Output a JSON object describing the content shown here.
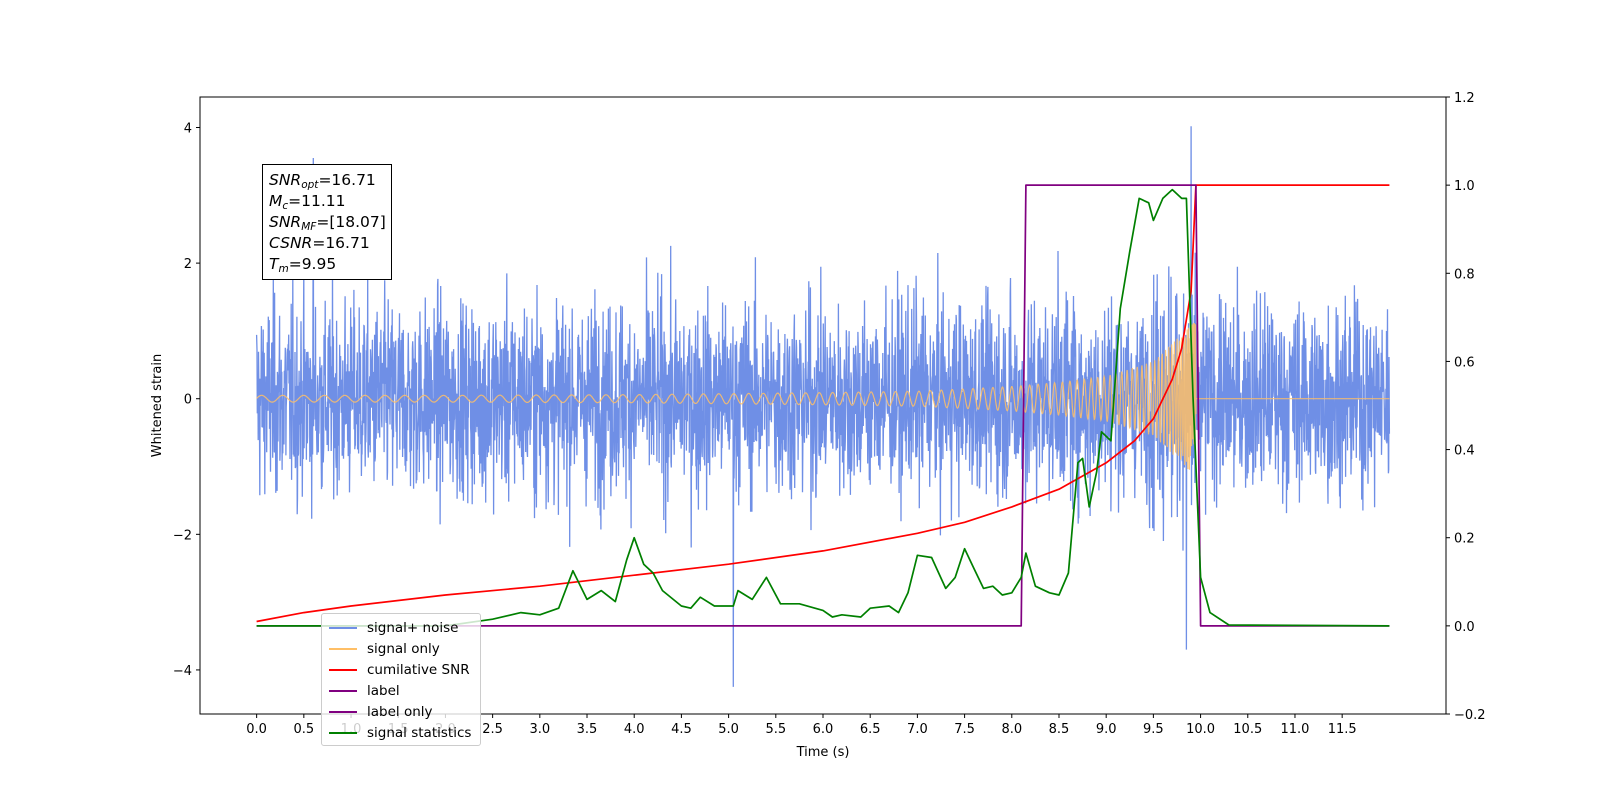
{
  "chart_data": {
    "type": "line",
    "xlabel": "Time (s)",
    "ylabel": "Whitened strain",
    "xlim": [
      -0.6,
      12.6
    ],
    "ylim": [
      -4.65,
      4.45
    ],
    "y2lim": [
      -0.2,
      1.2
    ],
    "xticks": [
      "0.0",
      "0.5",
      "1.0",
      "1.5",
      "2.0",
      "2.5",
      "3.0",
      "3.5",
      "4.0",
      "4.5",
      "5.0",
      "5.5",
      "6.0",
      "6.5",
      "7.0",
      "7.5",
      "8.0",
      "8.5",
      "9.0",
      "9.5",
      "10.0",
      "10.5",
      "11.0",
      "11.5"
    ],
    "yticks": [
      "−4",
      "−2",
      "0",
      "2",
      "4"
    ],
    "y2ticks": [
      "−0.2",
      "0.0",
      "0.2",
      "0.4",
      "0.6",
      "0.8",
      "1.0",
      "1.2"
    ],
    "annotation_lines": [
      {
        "label": "SNR",
        "sub": "opt",
        "value": "=16.71"
      },
      {
        "label": "M",
        "sub": "c",
        "value": "=11.11"
      },
      {
        "label": "SNR",
        "sub": "MF",
        "value": "=[18.07]"
      },
      {
        "label": "CSNR",
        "sub": "",
        "value": "=16.71"
      },
      {
        "label": "T",
        "sub": "m",
        "value": "=9.95"
      }
    ],
    "legend_placement": "lower-left",
    "legend": [
      {
        "name": "signal+ noise",
        "color": "#6f8fe6"
      },
      {
        "name": "signal only",
        "color": "#ffbf66"
      },
      {
        "name": "cumilative SNR",
        "color": "#ff0000"
      },
      {
        "name": "label",
        "color": "#800080"
      },
      {
        "name": "label only",
        "color": "#800080"
      },
      {
        "name": "signal statistics",
        "color": "#008000"
      }
    ],
    "series": [
      {
        "name": "signal+ noise",
        "axis": "left",
        "color": "#6f8fe6",
        "description": "white Gaussian noise plus chirp, sampled densely over 0–12 s",
        "t_range": [
          0.0,
          12.0
        ],
        "noise_std": 1.0,
        "spikes": [
          [
            0.6,
            3.55
          ],
          [
            9.9,
            4.02
          ],
          [
            5.05,
            -4.25
          ],
          [
            9.85,
            -3.7
          ]
        ]
      },
      {
        "name": "signal only",
        "axis": "left",
        "color": "#ffbf66",
        "description": "inspiral chirp, amplitude grows until merger at 9.95 s",
        "t_range": [
          0.0,
          12.0
        ],
        "merger_time": 9.95,
        "amplitude_points": [
          [
            0.0,
            0.05
          ],
          [
            2.0,
            0.05
          ],
          [
            4.0,
            0.06
          ],
          [
            6.0,
            0.09
          ],
          [
            7.0,
            0.11
          ],
          [
            8.0,
            0.18
          ],
          [
            8.5,
            0.24
          ],
          [
            9.0,
            0.33
          ],
          [
            9.5,
            0.55
          ],
          [
            9.8,
            0.95
          ],
          [
            9.95,
            1.15
          ]
        ]
      },
      {
        "name": "cumilative SNR",
        "axis": "right",
        "color": "#ff0000",
        "points": [
          [
            0.0,
            0.01
          ],
          [
            0.5,
            0.03
          ],
          [
            1.0,
            0.045
          ],
          [
            2.0,
            0.07
          ],
          [
            3.0,
            0.09
          ],
          [
            4.0,
            0.115
          ],
          [
            5.0,
            0.14
          ],
          [
            6.0,
            0.17
          ],
          [
            7.0,
            0.21
          ],
          [
            7.5,
            0.235
          ],
          [
            8.0,
            0.27
          ],
          [
            8.5,
            0.31
          ],
          [
            9.0,
            0.37
          ],
          [
            9.3,
            0.42
          ],
          [
            9.5,
            0.47
          ],
          [
            9.7,
            0.56
          ],
          [
            9.8,
            0.63
          ],
          [
            9.9,
            0.76
          ],
          [
            9.95,
            1.0
          ],
          [
            12.0,
            1.0
          ]
        ]
      },
      {
        "name": "label",
        "axis": "right",
        "color": "#800080",
        "points": [
          [
            0.0,
            0.0
          ],
          [
            8.1,
            0.0
          ],
          [
            8.15,
            1.0
          ],
          [
            9.95,
            1.0
          ],
          [
            10.0,
            0.0
          ],
          [
            12.0,
            0.0
          ]
        ]
      },
      {
        "name": "signal statistics",
        "axis": "right",
        "color": "#008000",
        "points": [
          [
            0.0,
            0.0
          ],
          [
            2.0,
            0.0
          ],
          [
            2.5,
            0.015
          ],
          [
            2.8,
            0.03
          ],
          [
            3.0,
            0.025
          ],
          [
            3.2,
            0.04
          ],
          [
            3.35,
            0.125
          ],
          [
            3.5,
            0.06
          ],
          [
            3.65,
            0.08
          ],
          [
            3.8,
            0.055
          ],
          [
            3.92,
            0.15
          ],
          [
            4.0,
            0.2
          ],
          [
            4.1,
            0.14
          ],
          [
            4.2,
            0.12
          ],
          [
            4.3,
            0.08
          ],
          [
            4.5,
            0.045
          ],
          [
            4.6,
            0.04
          ],
          [
            4.7,
            0.065
          ],
          [
            4.85,
            0.045
          ],
          [
            5.05,
            0.045
          ],
          [
            5.1,
            0.08
          ],
          [
            5.25,
            0.06
          ],
          [
            5.4,
            0.11
          ],
          [
            5.55,
            0.05
          ],
          [
            5.75,
            0.05
          ],
          [
            6.0,
            0.035
          ],
          [
            6.1,
            0.02
          ],
          [
            6.2,
            0.025
          ],
          [
            6.4,
            0.02
          ],
          [
            6.5,
            0.04
          ],
          [
            6.7,
            0.045
          ],
          [
            6.8,
            0.03
          ],
          [
            6.9,
            0.075
          ],
          [
            7.0,
            0.16
          ],
          [
            7.15,
            0.155
          ],
          [
            7.3,
            0.085
          ],
          [
            7.4,
            0.11
          ],
          [
            7.5,
            0.175
          ],
          [
            7.6,
            0.13
          ],
          [
            7.7,
            0.085
          ],
          [
            7.8,
            0.09
          ],
          [
            7.9,
            0.07
          ],
          [
            8.0,
            0.075
          ],
          [
            8.1,
            0.11
          ],
          [
            8.15,
            0.165
          ],
          [
            8.25,
            0.09
          ],
          [
            8.4,
            0.075
          ],
          [
            8.5,
            0.07
          ],
          [
            8.6,
            0.12
          ],
          [
            8.7,
            0.37
          ],
          [
            8.75,
            0.38
          ],
          [
            8.82,
            0.27
          ],
          [
            8.9,
            0.35
          ],
          [
            8.95,
            0.44
          ],
          [
            9.05,
            0.42
          ],
          [
            9.15,
            0.72
          ],
          [
            9.25,
            0.85
          ],
          [
            9.35,
            0.97
          ],
          [
            9.45,
            0.96
          ],
          [
            9.5,
            0.92
          ],
          [
            9.6,
            0.97
          ],
          [
            9.7,
            0.99
          ],
          [
            9.8,
            0.97
          ],
          [
            9.85,
            0.97
          ],
          [
            9.92,
            0.52
          ],
          [
            10.0,
            0.11
          ],
          [
            10.1,
            0.03
          ],
          [
            10.3,
            0.002
          ],
          [
            12.0,
            0.0
          ]
        ]
      }
    ]
  }
}
